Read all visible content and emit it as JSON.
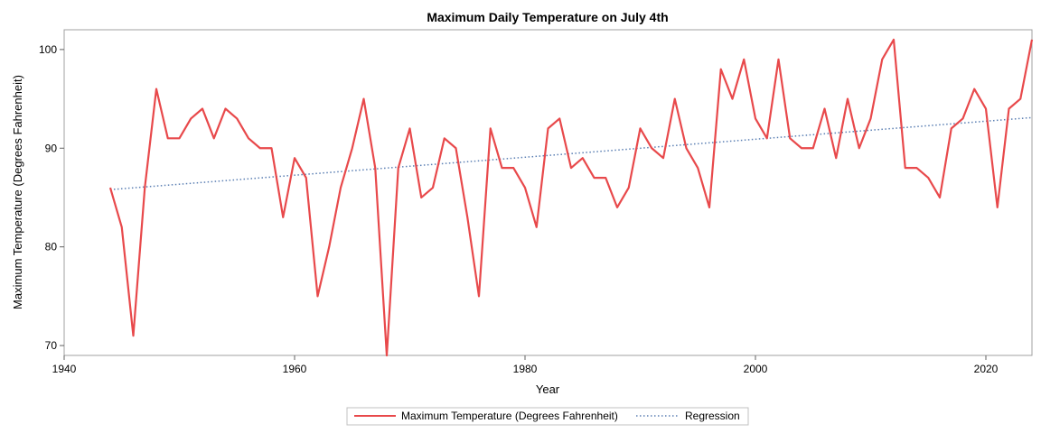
{
  "chart_data": {
    "type": "line",
    "title": "Maximum Daily Temperature on July 4th",
    "xlabel": "Year",
    "ylabel": "Maximum Temperature (Degrees Fahrenheit)",
    "xlim": [
      1940,
      2024
    ],
    "ylim": [
      69,
      102
    ],
    "x_ticks": [
      1940,
      1960,
      1980,
      2000,
      2020
    ],
    "y_ticks": [
      70,
      80,
      90,
      100
    ],
    "x_tick_labels": [
      "1940",
      "1960",
      "1980",
      "2000",
      "2020"
    ],
    "y_tick_labels": [
      "70",
      "80",
      "90",
      "100"
    ],
    "grid": false,
    "legend_position": "bottom-center",
    "colors": {
      "temperature": "#e8494b",
      "regression": "#5b7fb3"
    },
    "series": [
      {
        "name": "Maximum Temperature (Degrees Fahrenheit)",
        "style": "solid",
        "x": [
          1944,
          1945,
          1946,
          1947,
          1948,
          1949,
          1950,
          1951,
          1952,
          1953,
          1954,
          1955,
          1956,
          1957,
          1958,
          1959,
          1960,
          1961,
          1962,
          1963,
          1964,
          1965,
          1966,
          1967,
          1968,
          1969,
          1970,
          1971,
          1972,
          1973,
          1974,
          1975,
          1976,
          1977,
          1978,
          1979,
          1980,
          1981,
          1982,
          1983,
          1984,
          1985,
          1986,
          1987,
          1988,
          1989,
          1990,
          1991,
          1992,
          1993,
          1994,
          1995,
          1996,
          1997,
          1998,
          1999,
          2000,
          2001,
          2002,
          2003,
          2004,
          2005,
          2006,
          2007,
          2008,
          2009,
          2010,
          2011,
          2012,
          2013,
          2014,
          2015,
          2016,
          2017,
          2018,
          2019,
          2020,
          2021,
          2022,
          2023,
          2024
        ],
        "values": [
          86,
          82,
          71,
          86,
          96,
          91,
          91,
          93,
          94,
          91,
          94,
          93,
          91,
          90,
          90,
          83,
          89,
          87,
          75,
          80,
          86,
          90,
          95,
          88,
          69,
          88,
          92,
          85,
          86,
          91,
          90,
          83,
          75,
          92,
          88,
          88,
          86,
          82,
          92,
          93,
          88,
          89,
          87,
          87,
          84,
          86,
          92,
          90,
          89,
          95,
          90,
          88,
          84,
          98,
          95,
          99,
          93,
          91,
          99,
          91,
          90,
          90,
          94,
          89,
          95,
          90,
          93,
          99,
          101,
          88,
          88,
          87,
          85,
          92,
          93,
          96,
          94,
          84,
          94,
          95,
          101
        ]
      },
      {
        "name": "Regression",
        "style": "dotted",
        "x": [
          1944,
          2024
        ],
        "values": [
          85.8,
          93.1
        ]
      }
    ]
  }
}
